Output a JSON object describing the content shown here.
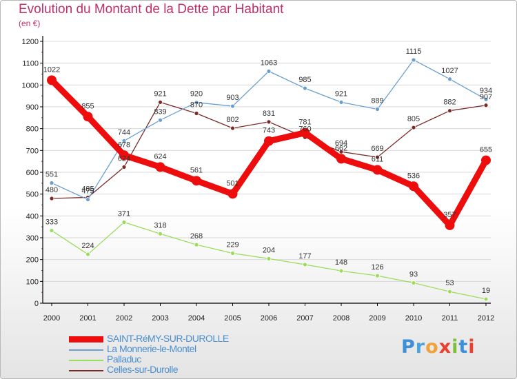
{
  "title": "Evolution du Montant de la Dette par Habitant",
  "subtitle": "(en €)",
  "logo": {
    "text": "Proxiti",
    "letters": [
      {
        "ch": "P",
        "cls": "p"
      },
      {
        "ch": "r",
        "cls": "r"
      },
      {
        "ch": "o",
        "cls": "o"
      },
      {
        "ch": "x",
        "cls": "x"
      },
      {
        "ch": "i",
        "cls": "i1"
      },
      {
        "ch": "t",
        "cls": "t"
      },
      {
        "ch": "i",
        "cls": "i2"
      }
    ]
  },
  "colors": {
    "title": "#c0306a",
    "axis": "#000000",
    "grid": "#d8d8d8",
    "legend_text": "#4a8ecf"
  },
  "chart_data": {
    "type": "line",
    "title": "Evolution du Montant de la Dette par Habitant",
    "subtitle": "(en €)",
    "xlabel": "",
    "ylabel": "",
    "x": [
      "2000",
      "2001",
      "2002",
      "2003",
      "2004",
      "2005",
      "2006",
      "2007",
      "2008",
      "2009",
      "2010",
      "2011",
      "2012"
    ],
    "ylim": [
      0,
      1200
    ],
    "yticks": [
      0,
      100,
      200,
      300,
      400,
      500,
      600,
      700,
      800,
      900,
      1000,
      1100,
      1200
    ],
    "grid": "horizontal",
    "legend_position": "bottom-left",
    "series": [
      {
        "name": "SAINT-RéMY-SUR-DUROLLE",
        "color": "#ee0d0d",
        "line_width": 9,
        "marker_size": 7,
        "labels": [
          "1022",
          "855",
          "678",
          "624",
          "561",
          "501",
          "743",
          "781",
          "662",
          "611",
          "536",
          "357",
          "655"
        ],
        "values": [
          1022,
          855,
          678,
          624,
          561,
          501,
          743,
          781,
          662,
          611,
          536,
          357,
          655
        ]
      },
      {
        "name": "La Monnerie-le-Montel",
        "color": "#6a9fd0",
        "line_width": 1.3,
        "marker_size": 3,
        "labels": [
          "551",
          "475",
          "744",
          "839",
          "920",
          "903",
          "1063",
          "985",
          "921",
          "889",
          "1115",
          "1027",
          "934"
        ],
        "values": [
          551,
          475,
          744,
          839,
          920,
          903,
          1063,
          985,
          921,
          889,
          1115,
          1027,
          934
        ]
      },
      {
        "name": "Palladuc",
        "color": "#9bdd5a",
        "line_width": 1.3,
        "marker_size": 3,
        "labels": [
          "333",
          "224",
          "371",
          "318",
          "268",
          "229",
          "204",
          "177",
          "148",
          "126",
          "93",
          "53",
          "19"
        ],
        "values": [
          333,
          224,
          371,
          318,
          268,
          229,
          204,
          177,
          148,
          126,
          93,
          53,
          19
        ]
      },
      {
        "name": "Celles-sur-Durolle",
        "color": "#7b2a28",
        "line_width": 1.3,
        "marker_size": 3,
        "labels": [
          "480",
          "485",
          "624",
          "921",
          "870",
          "802",
          "831",
          "760",
          "694",
          "669",
          "805",
          "882",
          "907"
        ],
        "values": [
          480,
          485,
          624,
          921,
          870,
          802,
          831,
          760,
          694,
          669,
          805,
          882,
          907
        ]
      }
    ]
  }
}
